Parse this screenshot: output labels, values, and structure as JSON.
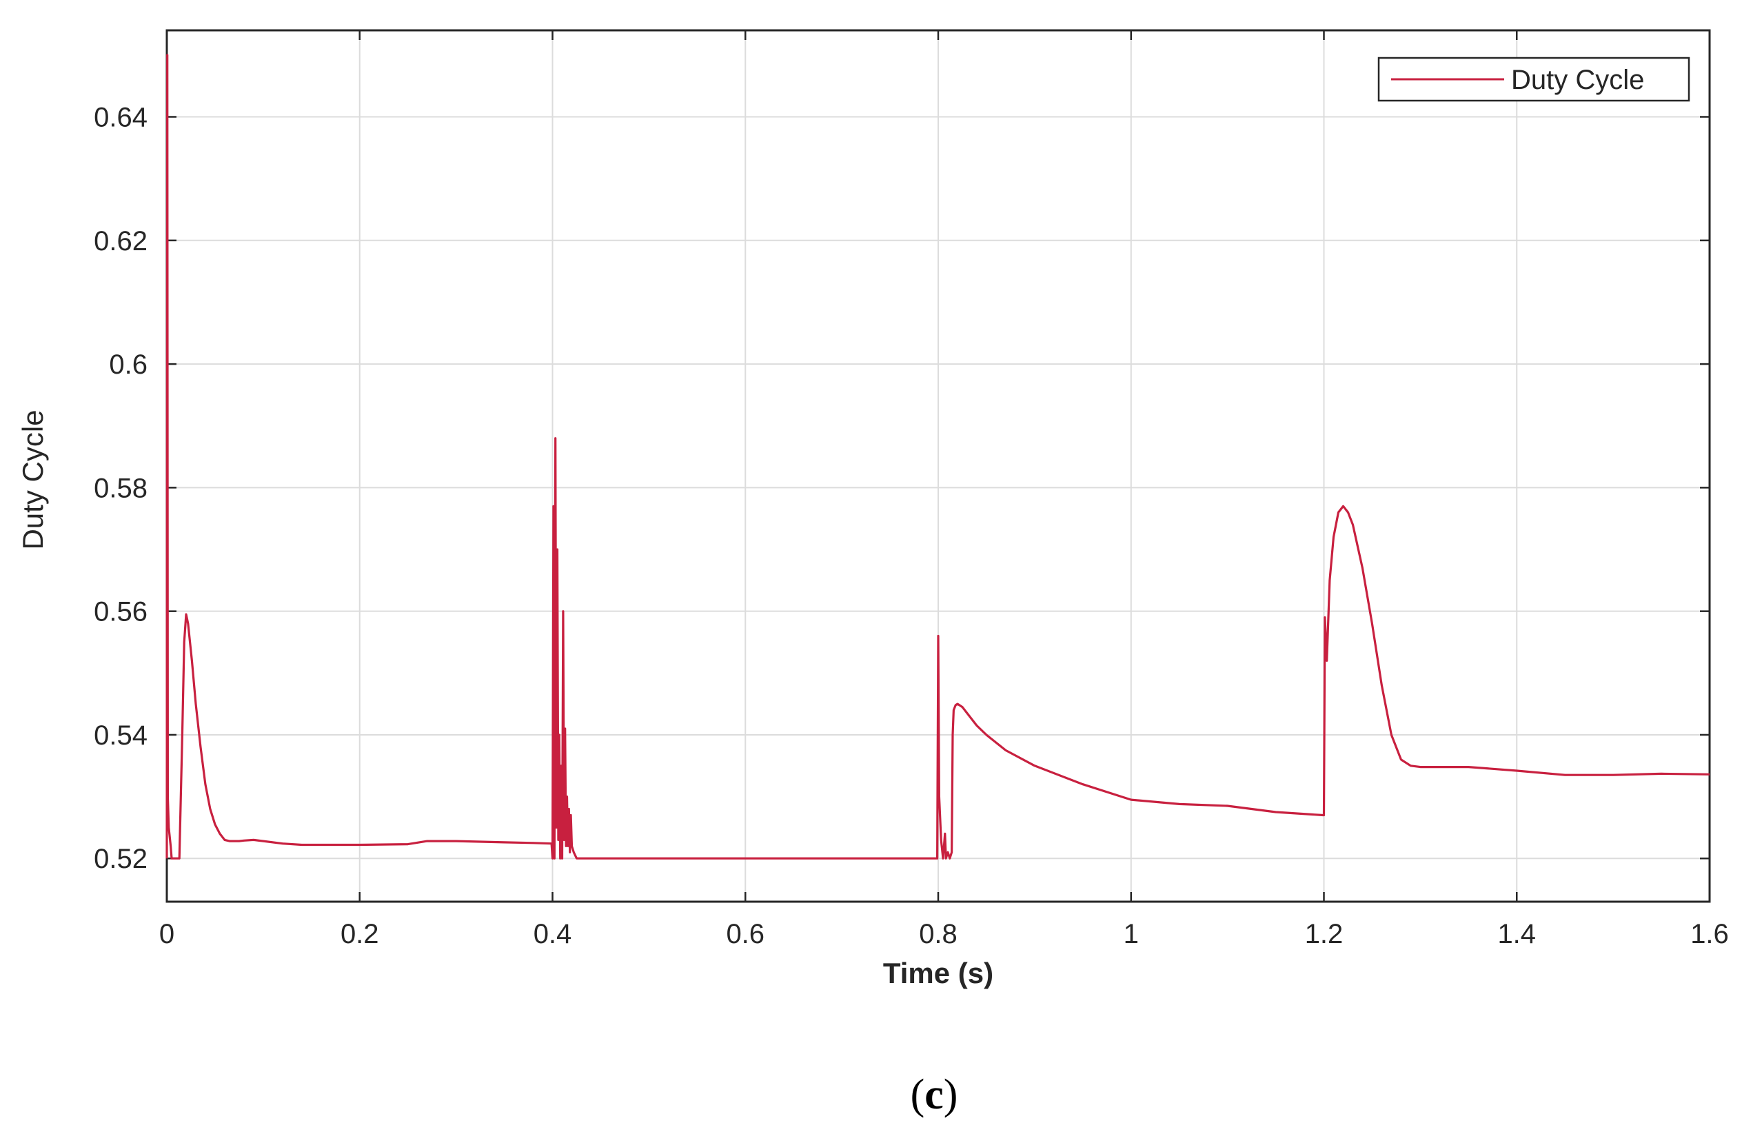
{
  "figure": {
    "caption_open": "(",
    "caption_letter": "c",
    "caption_close": ")"
  },
  "colors": {
    "series": "#c8203f",
    "grid": "#dcdcdc",
    "axis": "#262626",
    "background": "#ffffff"
  },
  "chart_data": {
    "type": "line",
    "title": "",
    "xlabel": "Time (s)",
    "ylabel": "Duty Cycle",
    "xlim": [
      0,
      1.6
    ],
    "ylim": [
      0.513,
      0.654
    ],
    "xticks": [
      0,
      0.2,
      0.4,
      0.6,
      0.8,
      1,
      1.2,
      1.4,
      1.6
    ],
    "xtick_labels": [
      "0",
      "0.2",
      "0.4",
      "0.6",
      "0.8",
      "1",
      "1.2",
      "1.4",
      "1.6"
    ],
    "yticks": [
      0.52,
      0.54,
      0.56,
      0.58,
      0.6,
      0.62,
      0.64
    ],
    "ytick_labels": [
      "0.52",
      "0.54",
      "0.56",
      "0.58",
      "0.6",
      "0.62",
      "0.64"
    ],
    "grid": true,
    "legend_position": "top-right",
    "series": [
      {
        "name": "Duty Cycle",
        "x": [
          0,
          0.0005,
          0.001,
          0.002,
          0.004,
          0.005,
          0.006,
          0.008,
          0.01,
          0.013,
          0.016,
          0.018,
          0.02,
          0.022,
          0.026,
          0.03,
          0.035,
          0.04,
          0.045,
          0.05,
          0.055,
          0.06,
          0.065,
          0.07,
          0.075,
          0.08,
          0.09,
          0.1,
          0.12,
          0.14,
          0.16,
          0.2,
          0.25,
          0.27,
          0.3,
          0.35,
          0.38,
          0.399,
          0.4,
          0.401,
          0.402,
          0.403,
          0.404,
          0.405,
          0.406,
          0.407,
          0.408,
          0.409,
          0.41,
          0.411,
          0.412,
          0.413,
          0.414,
          0.415,
          0.416,
          0.417,
          0.418,
          0.419,
          0.42,
          0.422,
          0.425,
          0.43,
          0.45,
          0.5,
          0.6,
          0.7,
          0.79,
          0.799,
          0.8,
          0.801,
          0.803,
          0.805,
          0.806,
          0.807,
          0.808,
          0.81,
          0.812,
          0.814,
          0.815,
          0.816,
          0.818,
          0.82,
          0.822,
          0.825,
          0.83,
          0.84,
          0.85,
          0.87,
          0.9,
          0.95,
          1.0,
          1.05,
          1.1,
          1.15,
          1.199,
          1.2,
          1.201,
          1.203,
          1.206,
          1.21,
          1.215,
          1.22,
          1.225,
          1.23,
          1.24,
          1.25,
          1.26,
          1.27,
          1.28,
          1.29,
          1.3,
          1.35,
          1.4,
          1.45,
          1.5,
          1.55,
          1.6
        ],
        "y": [
          0.52,
          0.65,
          0.53,
          0.525,
          0.522,
          0.52,
          0.52,
          0.52,
          0.52,
          0.52,
          0.54,
          0.555,
          0.5595,
          0.558,
          0.552,
          0.545,
          0.538,
          0.532,
          0.528,
          0.5255,
          0.524,
          0.523,
          0.5228,
          0.5228,
          0.5228,
          0.5229,
          0.523,
          0.5228,
          0.5224,
          0.5222,
          0.5222,
          0.5222,
          0.5223,
          0.5228,
          0.5228,
          0.5226,
          0.5225,
          0.5224,
          0.52,
          0.577,
          0.52,
          0.588,
          0.525,
          0.57,
          0.523,
          0.54,
          0.52,
          0.535,
          0.52,
          0.56,
          0.523,
          0.541,
          0.522,
          0.53,
          0.522,
          0.528,
          0.521,
          0.527,
          0.522,
          0.521,
          0.52,
          0.52,
          0.52,
          0.52,
          0.52,
          0.52,
          0.52,
          0.52,
          0.556,
          0.53,
          0.523,
          0.52,
          0.522,
          0.524,
          0.52,
          0.521,
          0.52,
          0.521,
          0.54,
          0.544,
          0.5448,
          0.545,
          0.5448,
          0.5445,
          0.5435,
          0.5415,
          0.54,
          0.5375,
          0.535,
          0.532,
          0.5295,
          0.5288,
          0.5285,
          0.5275,
          0.527,
          0.527,
          0.559,
          0.552,
          0.565,
          0.572,
          0.576,
          0.577,
          0.576,
          0.574,
          0.567,
          0.558,
          0.548,
          0.54,
          0.536,
          0.535,
          0.5348,
          0.5348,
          0.5342,
          0.5335,
          0.5335,
          0.5337,
          0.5336
        ]
      }
    ]
  }
}
